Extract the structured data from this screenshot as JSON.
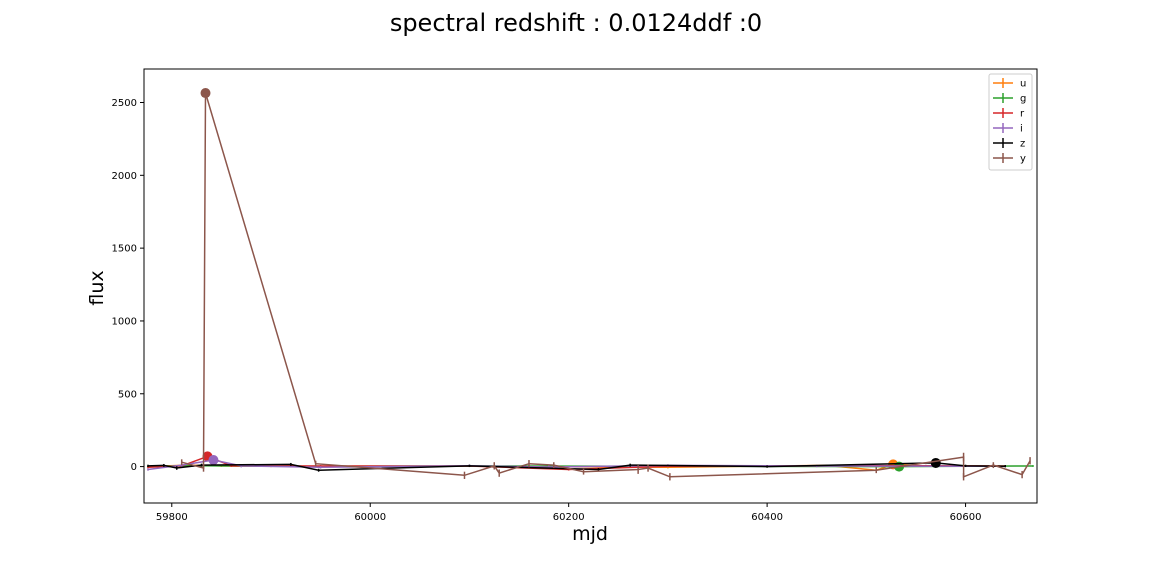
{
  "chart_data": {
    "type": "line",
    "title": "spectral redshift : 0.0124ddf :0",
    "xlabel": "mjd",
    "ylabel": "flux",
    "xlim": [
      59772,
      60672
    ],
    "ylim": [
      -250,
      2730
    ],
    "xticks": [
      59800,
      60000,
      60200,
      60400,
      60600
    ],
    "yticks": [
      0,
      500,
      1000,
      1500,
      2000,
      2500
    ],
    "grid": false,
    "legend_position": "top-right",
    "series": [
      {
        "name": "u",
        "color": "#ff7f0e",
        "points": [
          [
            59776,
            0,
            6
          ],
          [
            59815,
            10,
            8
          ],
          [
            59850,
            5,
            7
          ],
          [
            59900,
            2,
            6
          ],
          [
            60100,
            3,
            6
          ],
          [
            60300,
            -5,
            7
          ],
          [
            60460,
            8,
            6
          ],
          [
            60510,
            -25,
            8
          ],
          [
            60527,
            15,
            5
          ],
          [
            60560,
            4,
            6
          ],
          [
            60640,
            2,
            6
          ]
        ],
        "highlight": [
          60527,
          15
        ]
      },
      {
        "name": "g",
        "color": "#2ca02c",
        "points": [
          [
            59776,
            2,
            5
          ],
          [
            59830,
            6,
            6
          ],
          [
            59900,
            3,
            5
          ],
          [
            60100,
            4,
            5
          ],
          [
            60300,
            2,
            5
          ],
          [
            60533,
            0,
            5
          ],
          [
            60600,
            3,
            5
          ],
          [
            60668,
            4,
            6
          ]
        ],
        "highlight": [
          60533,
          0
        ]
      },
      {
        "name": "r",
        "color": "#d62728",
        "points": [
          [
            59776,
            -5,
            6
          ],
          [
            59810,
            5,
            8
          ],
          [
            59836,
            70,
            8
          ],
          [
            59860,
            5,
            7
          ],
          [
            59950,
            4,
            6
          ],
          [
            60100,
            4,
            6
          ],
          [
            60200,
            -20,
            7
          ],
          [
            60300,
            3,
            6
          ],
          [
            60450,
            5,
            6
          ],
          [
            60560,
            6,
            6
          ],
          [
            60640,
            4,
            6
          ]
        ],
        "highlight": [
          59836,
          70
        ]
      },
      {
        "name": "i",
        "color": "#9467bd",
        "points": [
          [
            59776,
            -20,
            8
          ],
          [
            59810,
            10,
            12
          ],
          [
            59842,
            45,
            15
          ],
          [
            59870,
            5,
            10
          ],
          [
            59950,
            -5,
            8
          ],
          [
            60100,
            6,
            8
          ],
          [
            60180,
            -3,
            10
          ],
          [
            60300,
            8,
            8
          ],
          [
            60450,
            4,
            8
          ],
          [
            60640,
            3,
            8
          ]
        ],
        "highlight": [
          59842,
          45
        ]
      },
      {
        "name": "z",
        "color": "#000000",
        "points": [
          [
            59776,
            5,
            8
          ],
          [
            59792,
            8,
            10
          ],
          [
            59805,
            -10,
            12
          ],
          [
            59830,
            10,
            10
          ],
          [
            59920,
            15,
            10
          ],
          [
            59948,
            -25,
            10
          ],
          [
            60100,
            5,
            8
          ],
          [
            60230,
            -20,
            10
          ],
          [
            60262,
            10,
            10
          ],
          [
            60400,
            0,
            8
          ],
          [
            60570,
            25,
            10
          ],
          [
            60600,
            5,
            8
          ],
          [
            60640,
            3,
            8
          ]
        ],
        "highlight": [
          60570,
          25
        ]
      },
      {
        "name": "y",
        "color": "#8c564b",
        "points": [
          [
            59810,
            30,
            20
          ],
          [
            59832,
            -10,
            25
          ],
          [
            59834,
            2565,
            15
          ],
          [
            59945,
            20,
            20
          ],
          [
            60095,
            -60,
            25
          ],
          [
            60125,
            5,
            25
          ],
          [
            60130,
            -45,
            25
          ],
          [
            60160,
            20,
            25
          ],
          [
            60185,
            10,
            20
          ],
          [
            60215,
            -35,
            20
          ],
          [
            60270,
            -20,
            30
          ],
          [
            60280,
            -10,
            25
          ],
          [
            60302,
            -70,
            25
          ],
          [
            60510,
            -25,
            20
          ],
          [
            60598,
            65,
            30
          ],
          [
            60598,
            -70,
            25
          ],
          [
            60628,
            10,
            20
          ],
          [
            60657,
            -55,
            25
          ],
          [
            60665,
            40,
            25
          ]
        ],
        "highlight": [
          59834,
          2565
        ]
      }
    ]
  }
}
